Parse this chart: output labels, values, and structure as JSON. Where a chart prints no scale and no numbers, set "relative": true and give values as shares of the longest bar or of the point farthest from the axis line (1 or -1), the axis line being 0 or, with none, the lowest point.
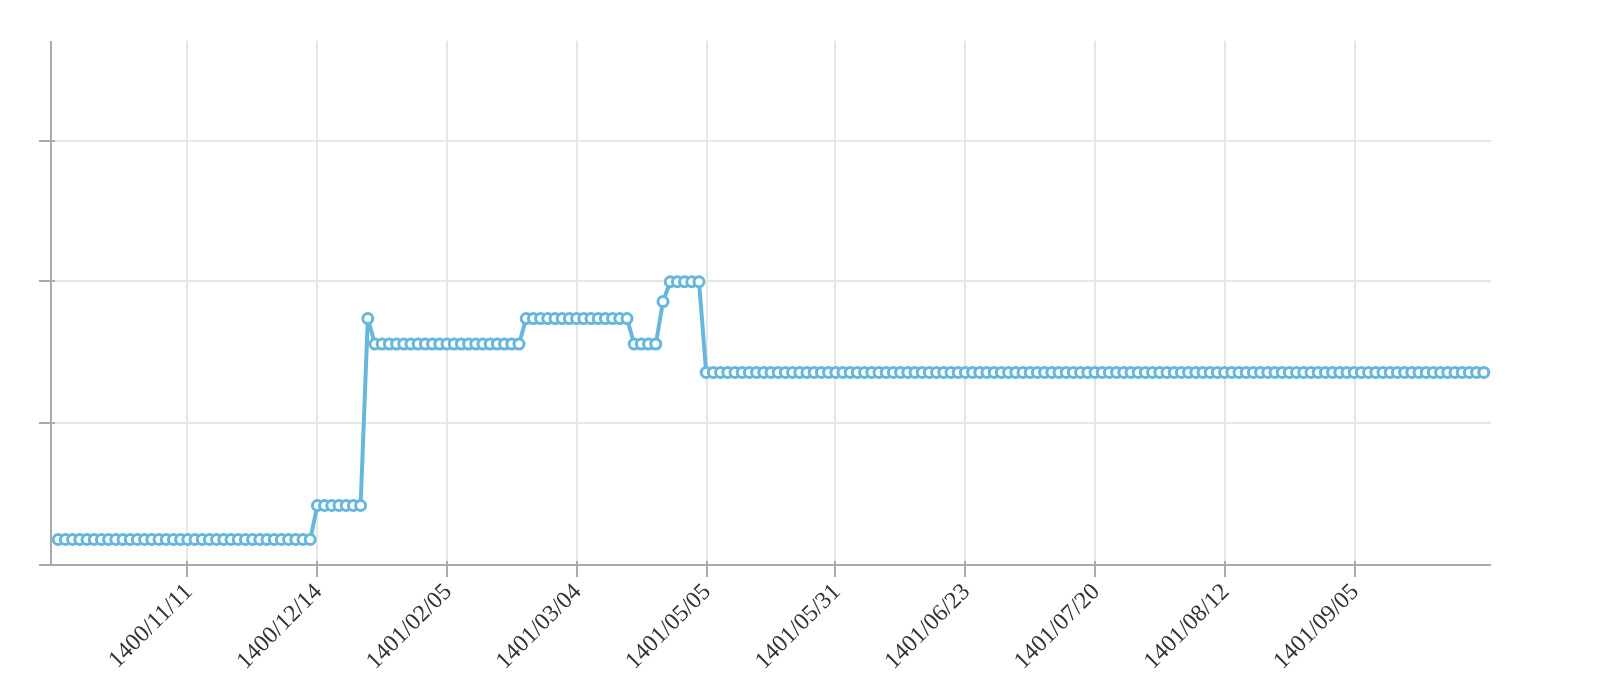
{
  "chart_data": {
    "type": "line",
    "relative": true,
    "grid": true,
    "marker": "circle",
    "line_style": "solid",
    "color": "#67b7dc",
    "categories": [
      null,
      null,
      null,
      null,
      null,
      null,
      null,
      null,
      null,
      null,
      null,
      null,
      null,
      null,
      null,
      null,
      null,
      null,
      "1400/11/11",
      null,
      null,
      null,
      null,
      null,
      null,
      null,
      null,
      null,
      null,
      null,
      null,
      null,
      null,
      null,
      null,
      null,
      "1400/12/14",
      null,
      null,
      null,
      null,
      null,
      null,
      null,
      null,
      null,
      null,
      null,
      null,
      null,
      null,
      null,
      null,
      null,
      "1401/02/05",
      null,
      null,
      null,
      null,
      null,
      null,
      null,
      null,
      null,
      null,
      null,
      null,
      null,
      null,
      null,
      null,
      null,
      "1401/03/04",
      null,
      null,
      null,
      null,
      null,
      null,
      null,
      null,
      null,
      null,
      null,
      null,
      null,
      null,
      null,
      null,
      null,
      "1401/05/05",
      null,
      null,
      null,
      null,
      null,
      null,
      null,
      null,
      null,
      null,
      null,
      null,
      null,
      null,
      null,
      null,
      null,
      "1401/05/31",
      null,
      null,
      null,
      null,
      null,
      null,
      null,
      null,
      null,
      null,
      null,
      null,
      null,
      null,
      null,
      null,
      null,
      "1401/06/23",
      null,
      null,
      null,
      null,
      null,
      null,
      null,
      null,
      null,
      null,
      null,
      null,
      null,
      null,
      null,
      null,
      null,
      "1401/07/20",
      null,
      null,
      null,
      null,
      null,
      null,
      null,
      null,
      null,
      null,
      null,
      null,
      null,
      null,
      null,
      null,
      null,
      "1401/08/12",
      null,
      null,
      null,
      null,
      null,
      null,
      null,
      null,
      null,
      null,
      null,
      null,
      null,
      null,
      null,
      null,
      null,
      "1401/09/05",
      null,
      null,
      null,
      null,
      null,
      null,
      null,
      null,
      null,
      null,
      null,
      null,
      null,
      null,
      null,
      null,
      null,
      null
    ],
    "values": [
      0.09,
      0.09,
      0.09,
      0.09,
      0.09,
      0.09,
      0.09,
      0.09,
      0.09,
      0.09,
      0.09,
      0.09,
      0.09,
      0.09,
      0.09,
      0.09,
      0.09,
      0.09,
      0.09,
      0.09,
      0.09,
      0.09,
      0.09,
      0.09,
      0.09,
      0.09,
      0.09,
      0.09,
      0.09,
      0.09,
      0.09,
      0.09,
      0.09,
      0.09,
      0.09,
      0.09,
      0.21,
      0.21,
      0.21,
      0.21,
      0.21,
      0.21,
      0.21,
      0.87,
      0.78,
      0.78,
      0.78,
      0.78,
      0.78,
      0.78,
      0.78,
      0.78,
      0.78,
      0.78,
      0.78,
      0.78,
      0.78,
      0.78,
      0.78,
      0.78,
      0.78,
      0.78,
      0.78,
      0.78,
      0.78,
      0.87,
      0.87,
      0.87,
      0.87,
      0.87,
      0.87,
      0.87,
      0.87,
      0.87,
      0.87,
      0.87,
      0.87,
      0.87,
      0.87,
      0.87,
      0.78,
      0.78,
      0.78,
      0.78,
      0.93,
      1,
      1,
      1,
      1,
      1,
      0.68,
      0.68,
      0.68,
      0.68,
      0.68,
      0.68,
      0.68,
      0.68,
      0.68,
      0.68,
      0.68,
      0.68,
      0.68,
      0.68,
      0.68,
      0.68,
      0.68,
      0.68,
      0.68,
      0.68,
      0.68,
      0.68,
      0.68,
      0.68,
      0.68,
      0.68,
      0.68,
      0.68,
      0.68,
      0.68,
      0.68,
      0.68,
      0.68,
      0.68,
      0.68,
      0.68,
      0.68,
      0.68,
      0.68,
      0.68,
      0.68,
      0.68,
      0.68,
      0.68,
      0.68,
      0.68,
      0.68,
      0.68,
      0.68,
      0.68,
      0.68,
      0.68,
      0.68,
      0.68,
      0.68,
      0.68,
      0.68,
      0.68,
      0.68,
      0.68,
      0.68,
      0.68,
      0.68,
      0.68,
      0.68,
      0.68,
      0.68,
      0.68,
      0.68,
      0.68,
      0.68,
      0.68,
      0.68,
      0.68,
      0.68,
      0.68,
      0.68,
      0.68,
      0.68,
      0.68,
      0.68,
      0.68,
      0.68,
      0.68,
      0.68,
      0.68,
      0.68,
      0.68,
      0.68,
      0.68,
      0.68,
      0.68,
      0.68,
      0.68,
      0.68,
      0.68,
      0.68,
      0.68,
      0.68,
      0.68,
      0.68,
      0.68,
      0.68,
      0.68,
      0.68,
      0.68,
      0.68,
      0.68,
      0.68
    ]
  }
}
